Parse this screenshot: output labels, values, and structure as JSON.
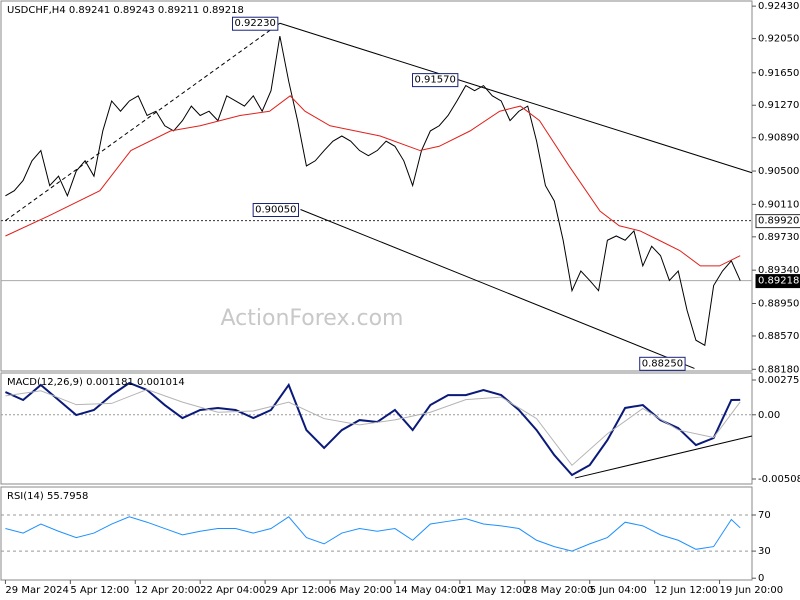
{
  "chart_data": [
    {
      "type": "line",
      "title": "USDCHF,H4  0.89241 0.89243 0.89211 0.89218",
      "watermark": "ActionForex.com",
      "xlim": [
        -3,
        506
      ],
      "ylim": [
        0.8816,
        0.9249
      ],
      "yticks": [
        {
          "value": 0.9243,
          "label": "0.92430"
        },
        {
          "value": 0.9205,
          "label": "0.92050"
        },
        {
          "value": 0.9165,
          "label": "0.91650"
        },
        {
          "value": 0.9127,
          "label": "0.91270"
        },
        {
          "value": 0.9089,
          "label": "0.90890"
        },
        {
          "value": 0.905,
          "label": "0.90500"
        },
        {
          "value": 0.9011,
          "label": "0.90110"
        },
        {
          "value": 0.8973,
          "label": "0.89730"
        },
        {
          "value": 0.8934,
          "label": "0.89340"
        },
        {
          "value": 0.8895,
          "label": "0.88950"
        },
        {
          "value": 0.8857,
          "label": "0.88570"
        },
        {
          "value": 0.8818,
          "label": "0.88180"
        }
      ],
      "x": [
        0,
        6,
        12,
        18,
        24,
        30,
        36,
        42,
        48,
        54,
        60,
        66,
        72,
        78,
        84,
        90,
        96,
        102,
        108,
        114,
        120,
        126,
        132,
        138,
        144,
        150,
        156,
        162,
        168,
        174,
        180,
        186,
        192,
        198,
        204,
        210,
        216,
        222,
        228,
        234,
        240,
        246,
        252,
        258,
        264,
        270,
        276,
        282,
        288,
        294,
        300,
        306,
        312,
        318,
        324,
        330,
        336,
        342,
        348,
        354,
        360,
        366,
        372,
        378,
        384,
        390,
        396,
        402,
        408,
        414,
        420,
        426,
        432,
        438,
        444,
        450,
        456,
        462,
        468,
        474,
        480,
        486,
        492,
        498
      ],
      "series": [
        {
          "color": "#000000",
          "values": [
            0.9021,
            0.9027,
            0.9039,
            0.9062,
            0.9074,
            0.9033,
            0.9044,
            0.9021,
            0.905,
            0.9062,
            0.9044,
            0.9097,
            0.9132,
            0.912,
            0.9132,
            0.9138,
            0.9115,
            0.912,
            0.9103,
            0.9097,
            0.9109,
            0.9126,
            0.9115,
            0.912,
            0.9109,
            0.9138,
            0.9132,
            0.9126,
            0.9138,
            0.912,
            0.9144,
            0.9208,
            0.9155,
            0.9109,
            0.9056,
            0.9062,
            0.9074,
            0.9085,
            0.9091,
            0.9085,
            0.9074,
            0.9068,
            0.9074,
            0.9085,
            0.9079,
            0.9062,
            0.9033,
            0.9074,
            0.9097,
            0.9103,
            0.9115,
            0.9132,
            0.915,
            0.9144,
            0.915,
            0.9138,
            0.9132,
            0.9109,
            0.912,
            0.9126,
            0.9085,
            0.9033,
            0.9015,
            0.8969,
            0.891,
            0.8933,
            0.8922,
            0.891,
            0.8969,
            0.8974,
            0.8969,
            0.898,
            0.8939,
            0.8962,
            0.8951,
            0.8922,
            0.8933,
            0.8887,
            0.8852,
            0.8846,
            0.8916,
            0.8933,
            0.8945,
            0.89218
          ]
        },
        {
          "color": "#e0201b",
          "x": [
            0,
            30,
            64,
            85,
            112,
            132,
            159,
            179,
            193,
            203,
            220,
            254,
            281,
            294,
            315,
            335,
            349,
            362,
            382,
            403,
            416,
            430,
            443,
            457,
            471,
            484,
            498
          ],
          "values": [
            0.8974,
            0.8998,
            0.9027,
            0.9074,
            0.9097,
            0.9103,
            0.9115,
            0.912,
            0.9138,
            0.912,
            0.9103,
            0.9091,
            0.9074,
            0.9079,
            0.9097,
            0.912,
            0.9126,
            0.9109,
            0.9056,
            0.9003,
            0.8986,
            0.898,
            0.8969,
            0.8957,
            0.8939,
            0.8939,
            0.8951
          ]
        }
      ],
      "trendlines": [
        {
          "x": [
            186,
            506
          ],
          "y": [
            0.9223,
            0.9048
          ],
          "style": "solid"
        },
        {
          "x": [
            200,
            467
          ],
          "y": [
            0.9005,
            0.8819
          ],
          "style": "solid"
        },
        {
          "x": [
            0,
            186
          ],
          "y": [
            0.8992,
            0.9223
          ],
          "style": "dashed"
        }
      ],
      "annotations": [
        {
          "text": "0.92230",
          "x": 186,
          "y": 0.9223
        },
        {
          "text": "0.91570",
          "x": 308,
          "y": 0.9157
        },
        {
          "text": "0.90050",
          "x": 200,
          "y": 0.9005
        },
        {
          "text": "0.88250",
          "x": 462,
          "y": 0.8825
        }
      ],
      "level_lines": [
        {
          "value": 0.8992,
          "label": "0.89920",
          "style": "dotted"
        },
        {
          "value": 0.89218,
          "label": "0.89218",
          "style": "solid"
        }
      ]
    },
    {
      "type": "line",
      "title": "MACD(12,26,9) 0.001181 0.001014",
      "xlim": [
        -3,
        506
      ],
      "ylim": [
        -0.005479,
        0.003307
      ],
      "yticks": [
        0.002753,
        {
          "value": 0,
          "label": "0.00"
        },
        -0.005083
      ],
      "zero_line": true,
      "series": [
        {
          "color": "#0a1a7a",
          "x": [
            0,
            12,
            24,
            36,
            48,
            60,
            72,
            84,
            96,
            108,
            120,
            132,
            144,
            156,
            168,
            180,
            192,
            204,
            216,
            228,
            240,
            252,
            264,
            276,
            288,
            300,
            312,
            324,
            336,
            348,
            360,
            372,
            384,
            396,
            408,
            420,
            432,
            444,
            456,
            468,
            480,
            492,
            498
          ],
          "values": [
            0.0018,
            0.00117,
            0.00236,
            0.00117,
            -2e-05,
            0.00038,
            0.00156,
            0.00252,
            0.00196,
            0.00077,
            -0.00026,
            0.00038,
            0.00054,
            0.00038,
            -0.00026,
            0.00038,
            0.00236,
            -0.00121,
            -0.00263,
            -0.00121,
            -0.00042,
            -0.00057,
            0.00038,
            -0.00121,
            0.00077,
            0.00156,
            0.00156,
            0.00196,
            0.00156,
            0.00038,
            -0.00121,
            -0.00319,
            -0.00477,
            -0.00398,
            -0.002,
            0.00054,
            0.00077,
            -0.00042,
            -0.00105,
            -0.0024,
            -0.00184,
            0.00117,
            0.001181
          ]
        },
        {
          "color": "#b4b4b4",
          "x": [
            0,
            24,
            48,
            72,
            96,
            120,
            144,
            168,
            192,
            216,
            240,
            264,
            288,
            312,
            336,
            360,
            384,
            408,
            432,
            456,
            480,
            498
          ],
          "values": [
            0.0015,
            0.0019,
            0.0008,
            0.0009,
            0.002,
            0.001,
            0.0002,
            0.0003,
            0.001,
            -0.0003,
            -0.0008,
            -0.0004,
            0.0002,
            0.0012,
            0.0014,
            -0.0003,
            -0.004,
            -0.0015,
            0.0005,
            -0.0012,
            -0.0018,
            0.001014
          ]
        }
      ],
      "trendlines": [
        {
          "x": [
            386,
            506
          ],
          "y": [
            -0.00501,
            -0.00168
          ],
          "style": "solid"
        }
      ]
    },
    {
      "type": "line",
      "title": "RSI(14) 55.7958",
      "xlim": [
        -3,
        506
      ],
      "ylim": [
        -2,
        101
      ],
      "yticks": [
        70,
        30,
        0
      ],
      "dashed_levels": [
        70,
        30
      ],
      "xticks": [
        {
          "value": 0,
          "label": "29 Mar 2024"
        },
        {
          "value": 44,
          "label": "5 Apr 12:00"
        },
        {
          "value": 88,
          "label": "12 Apr 20:00"
        },
        {
          "value": 132,
          "label": "22 Apr 04:00"
        },
        {
          "value": 176,
          "label": "29 Apr 12:00"
        },
        {
          "value": 220,
          "label": "6 May 20:00"
        },
        {
          "value": 264,
          "label": "14 May 04:00"
        },
        {
          "value": 308,
          "label": "21 May 12:00"
        },
        {
          "value": 352,
          "label": "28 May 20:00"
        },
        {
          "value": 396,
          "label": "5 Jun 04:00"
        },
        {
          "value": 440,
          "label": "12 Jun 12:00"
        },
        {
          "value": 484,
          "label": "19 Jun 20:00"
        }
      ],
      "series": [
        {
          "color": "#1e90ff",
          "x": [
            0,
            12,
            24,
            36,
            48,
            60,
            72,
            84,
            96,
            108,
            120,
            132,
            144,
            156,
            168,
            180,
            192,
            204,
            216,
            228,
            240,
            252,
            264,
            276,
            288,
            300,
            312,
            324,
            336,
            348,
            360,
            372,
            384,
            396,
            408,
            420,
            432,
            444,
            456,
            468,
            480,
            492,
            498
          ],
          "values": [
            55,
            50,
            60,
            52,
            45,
            50,
            60,
            68,
            62,
            55,
            48,
            52,
            55,
            55,
            50,
            55,
            68,
            45,
            38,
            50,
            55,
            52,
            55,
            42,
            60,
            63,
            66,
            60,
            58,
            55,
            42,
            35,
            30,
            38,
            45,
            62,
            58,
            48,
            42,
            32,
            35,
            65,
            55.7958
          ]
        }
      ]
    }
  ]
}
